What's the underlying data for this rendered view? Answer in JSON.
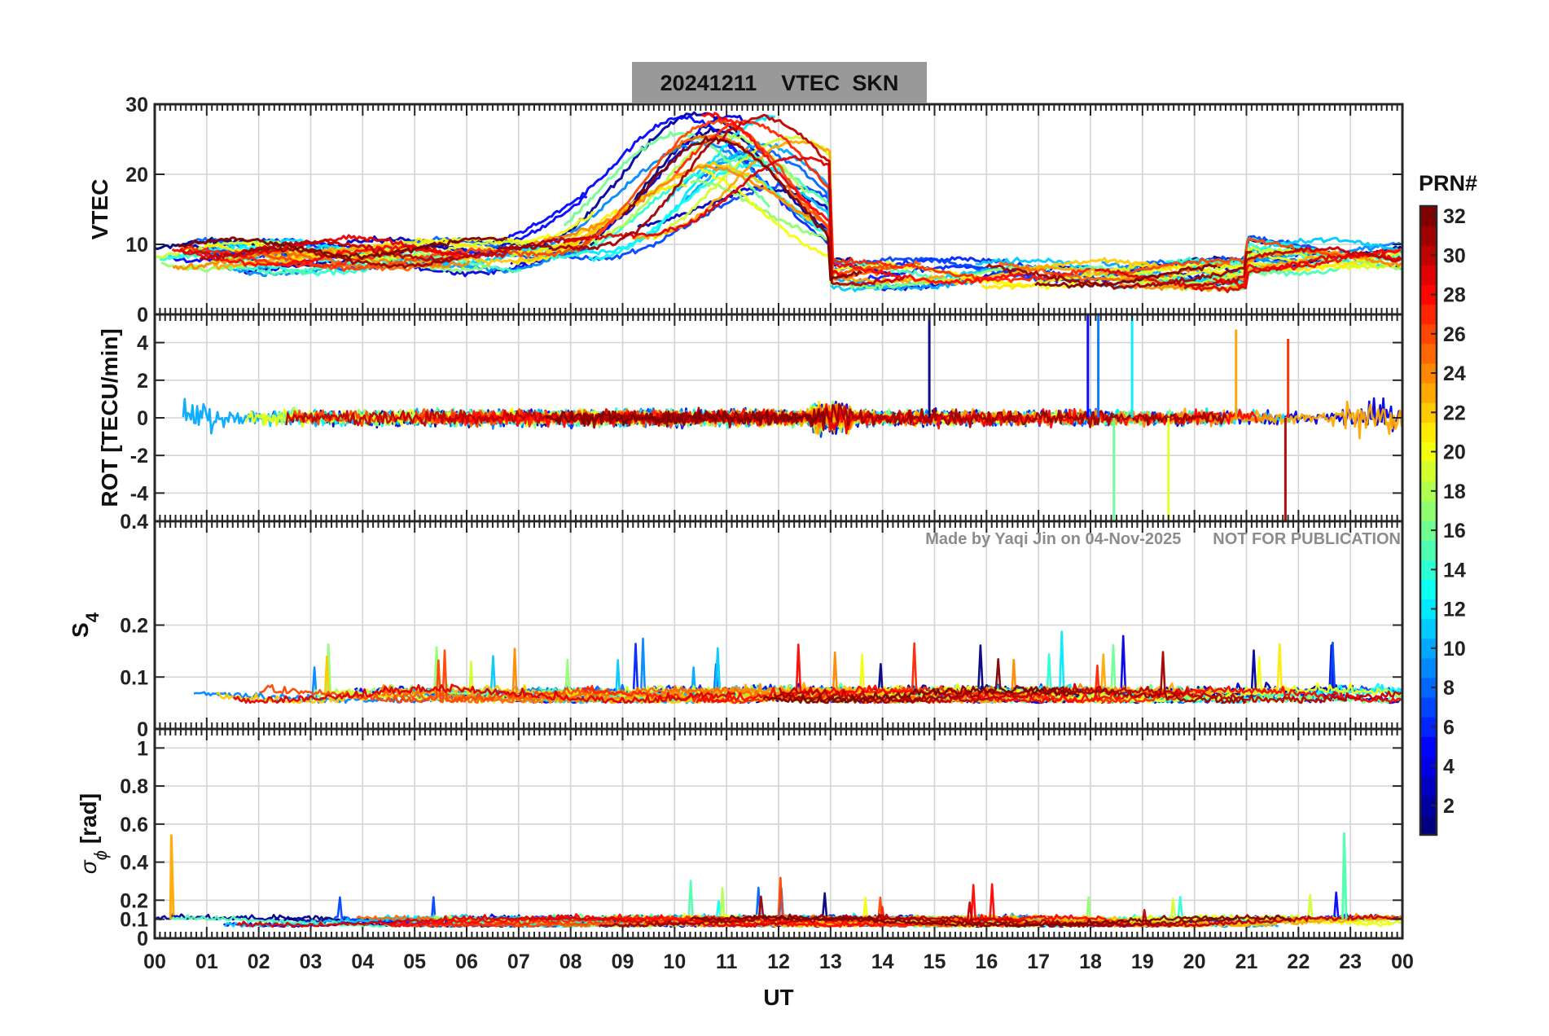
{
  "title": "20241211    VTEC  SKN",
  "watermark": "Made by Yaqi Jin on 04-Nov-2025       NOT FOR PUBLICATION",
  "colors": {
    "title_bg": "#999999",
    "grid": "#d4d4d4",
    "axis": "#262626",
    "watermark": "#8c8c8c"
  },
  "chart_data": [
    {
      "type": "line",
      "panel": "vtec",
      "ylabel": "VTEC",
      "ylim": [
        0,
        30
      ],
      "yticks": [
        0,
        10,
        20,
        30
      ],
      "yticklabels": [
        "0",
        "10",
        "20",
        "30"
      ],
      "show_bottom_ticklabel": false,
      "xlim": [
        0,
        24
      ],
      "series_summary": "Multiple PRN tracks: ~5-11 TECU nighttime (00-07 UT), daytime rise peaking ~25-29 TECU near 10-13 UT, then drop to ~4-8 TECU after 14 UT"
    },
    {
      "type": "line",
      "panel": "rot",
      "ylabel": "ROT [TECU/min]",
      "ylim": [
        -5.5,
        5.5
      ],
      "yticks": [
        -4,
        -2,
        0,
        2,
        4
      ],
      "yticklabels": [
        "-4",
        "-2",
        "0",
        "2",
        "4"
      ],
      "top_ticklabel": "0",
      "xlim": [
        0,
        24
      ],
      "spikes": [
        {
          "t": 14.9,
          "v": 5.5
        },
        {
          "t": 17.95,
          "v": 5.5
        },
        {
          "t": 18.15,
          "v": 5.5
        },
        {
          "t": 18.8,
          "v": 5.5
        },
        {
          "t": 18.45,
          "v": -5.5
        },
        {
          "t": 19.5,
          "v": -5.5
        },
        {
          "t": 20.8,
          "v": 4.7
        },
        {
          "t": 21.8,
          "v": 4.2
        },
        {
          "t": 21.75,
          "v": -5.5
        }
      ]
    },
    {
      "type": "line",
      "panel": "s4",
      "ylabel": "S",
      "ylabel_sub": "4",
      "ylim": [
        0,
        0.4
      ],
      "yticks": [
        0,
        0.1,
        0.2
      ],
      "yticklabels": [
        "0",
        "0.1",
        "0.2"
      ],
      "top_ticklabel": "0.4",
      "xlim": [
        0,
        24
      ],
      "series_summary": "S4 mostly 0.04-0.10 with occasional spikes up to ~0.17"
    },
    {
      "type": "line",
      "panel": "sigma",
      "ylabel": "σ",
      "ylabel_sub": "ϕ",
      "ylabel_suffix": "  [rad]",
      "ylim": [
        0,
        1.1
      ],
      "yticks": [
        0,
        0.1,
        0.2,
        0.4,
        0.6,
        0.8,
        1
      ],
      "yticklabels": [
        "0",
        "0.1",
        "0.2",
        "0.4",
        "0.6",
        "0.8",
        "1"
      ],
      "xlim": [
        0,
        24
      ],
      "xlabel": "UT",
      "xticks": [
        0,
        1,
        2,
        3,
        4,
        5,
        6,
        7,
        8,
        9,
        10,
        11,
        12,
        13,
        14,
        15,
        16,
        17,
        18,
        19,
        20,
        21,
        22,
        23,
        24
      ],
      "xticklabels": [
        "00",
        "01",
        "02",
        "03",
        "04",
        "05",
        "06",
        "07",
        "08",
        "09",
        "10",
        "11",
        "12",
        "13",
        "14",
        "15",
        "16",
        "17",
        "18",
        "19",
        "20",
        "21",
        "22",
        "23",
        "00"
      ],
      "series_summary": "Phase scintillation mostly 0.05-0.15 rad, spikes ~0.55 near 00:20 and 22:50 UT"
    }
  ],
  "colorbar": {
    "label": "PRN#",
    "range": [
      1,
      32
    ],
    "ticks": [
      2,
      4,
      6,
      8,
      10,
      12,
      14,
      16,
      18,
      20,
      22,
      24,
      26,
      28,
      30,
      32
    ],
    "ticklabels": [
      "2",
      "4",
      "6",
      "8",
      "10",
      "12",
      "14",
      "16",
      "18",
      "20",
      "22",
      "24",
      "26",
      "28",
      "30",
      "32"
    ],
    "colormap": "jet"
  }
}
